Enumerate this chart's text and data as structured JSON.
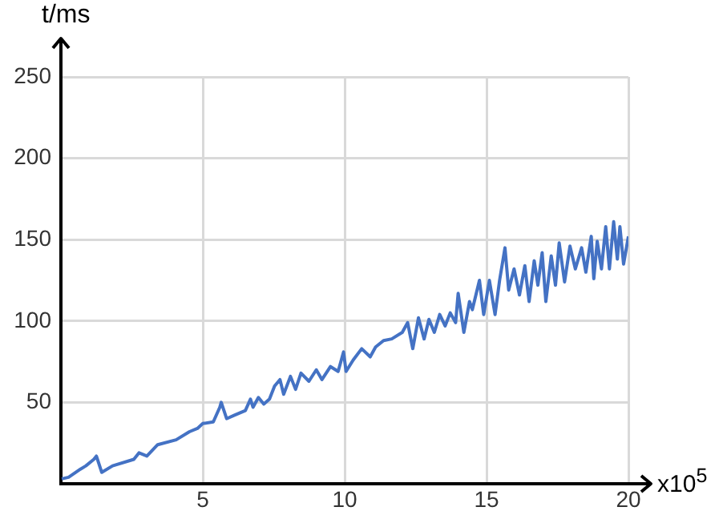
{
  "chart_data": {
    "type": "line",
    "xlabel": "x10$^{5}$",
    "ylabel": "t/ms",
    "xlim": [
      0,
      20
    ],
    "xticks": [
      5,
      10,
      15,
      20
    ],
    "ylim": [
      0,
      250
    ],
    "yticks": [
      50,
      100,
      150,
      200,
      250
    ],
    "grid": true,
    "legend": false,
    "marker": "none",
    "line_style": "solid",
    "series": [
      {
        "color": "#4472c4",
        "x": [
          0.03,
          0.27,
          0.69,
          0.88,
          1.16,
          1.25,
          1.44,
          1.82,
          2.57,
          2.75,
          3.03,
          3.41,
          4.06,
          4.53,
          4.81,
          5.0,
          5.37,
          5.6,
          5.65,
          5.84,
          6.1,
          6.5,
          6.68,
          6.77,
          6.96,
          7.15,
          7.35,
          7.53,
          7.72,
          7.85,
          8.09,
          8.27,
          8.46,
          8.74,
          9.0,
          9.2,
          9.5,
          9.77,
          9.96,
          10.05,
          10.3,
          10.6,
          10.9,
          11.09,
          11.37,
          11.66,
          12.03,
          12.22,
          12.4,
          12.6,
          12.8,
          12.97,
          13.16,
          13.35,
          13.54,
          13.72,
          13.91,
          14.0,
          14.2,
          14.4,
          14.5,
          14.75,
          14.9,
          15.1,
          15.3,
          15.46,
          15.65,
          15.78,
          15.97,
          16.16,
          16.35,
          16.5,
          16.68,
          16.81,
          16.96,
          17.09,
          17.28,
          17.43,
          17.56,
          17.75,
          17.94,
          18.13,
          18.35,
          18.5,
          18.69,
          18.78,
          18.9,
          19.05,
          19.2,
          19.33,
          19.48,
          19.61,
          19.7,
          19.83,
          20.0
        ],
        "values": [
          3,
          4,
          9,
          11,
          15,
          17,
          7,
          11,
          15,
          19,
          17,
          24,
          27,
          32,
          34,
          37,
          38,
          47,
          50,
          40,
          42,
          45,
          52,
          47,
          53,
          49,
          52,
          60,
          64,
          55,
          66,
          58,
          68,
          63,
          70,
          64,
          72,
          69,
          81,
          69,
          76,
          83,
          78,
          84,
          88,
          89,
          93,
          99,
          83,
          102,
          89,
          101,
          93,
          104,
          97,
          105,
          99,
          117,
          93,
          112,
          107,
          125,
          104,
          125,
          104,
          125,
          145,
          119,
          132,
          116,
          134,
          112,
          137,
          122,
          142,
          112,
          140,
          122,
          148,
          124,
          146,
          132,
          145,
          130,
          152,
          126,
          149,
          132,
          158,
          132,
          161,
          138,
          158,
          135,
          152
        ]
      }
    ]
  }
}
